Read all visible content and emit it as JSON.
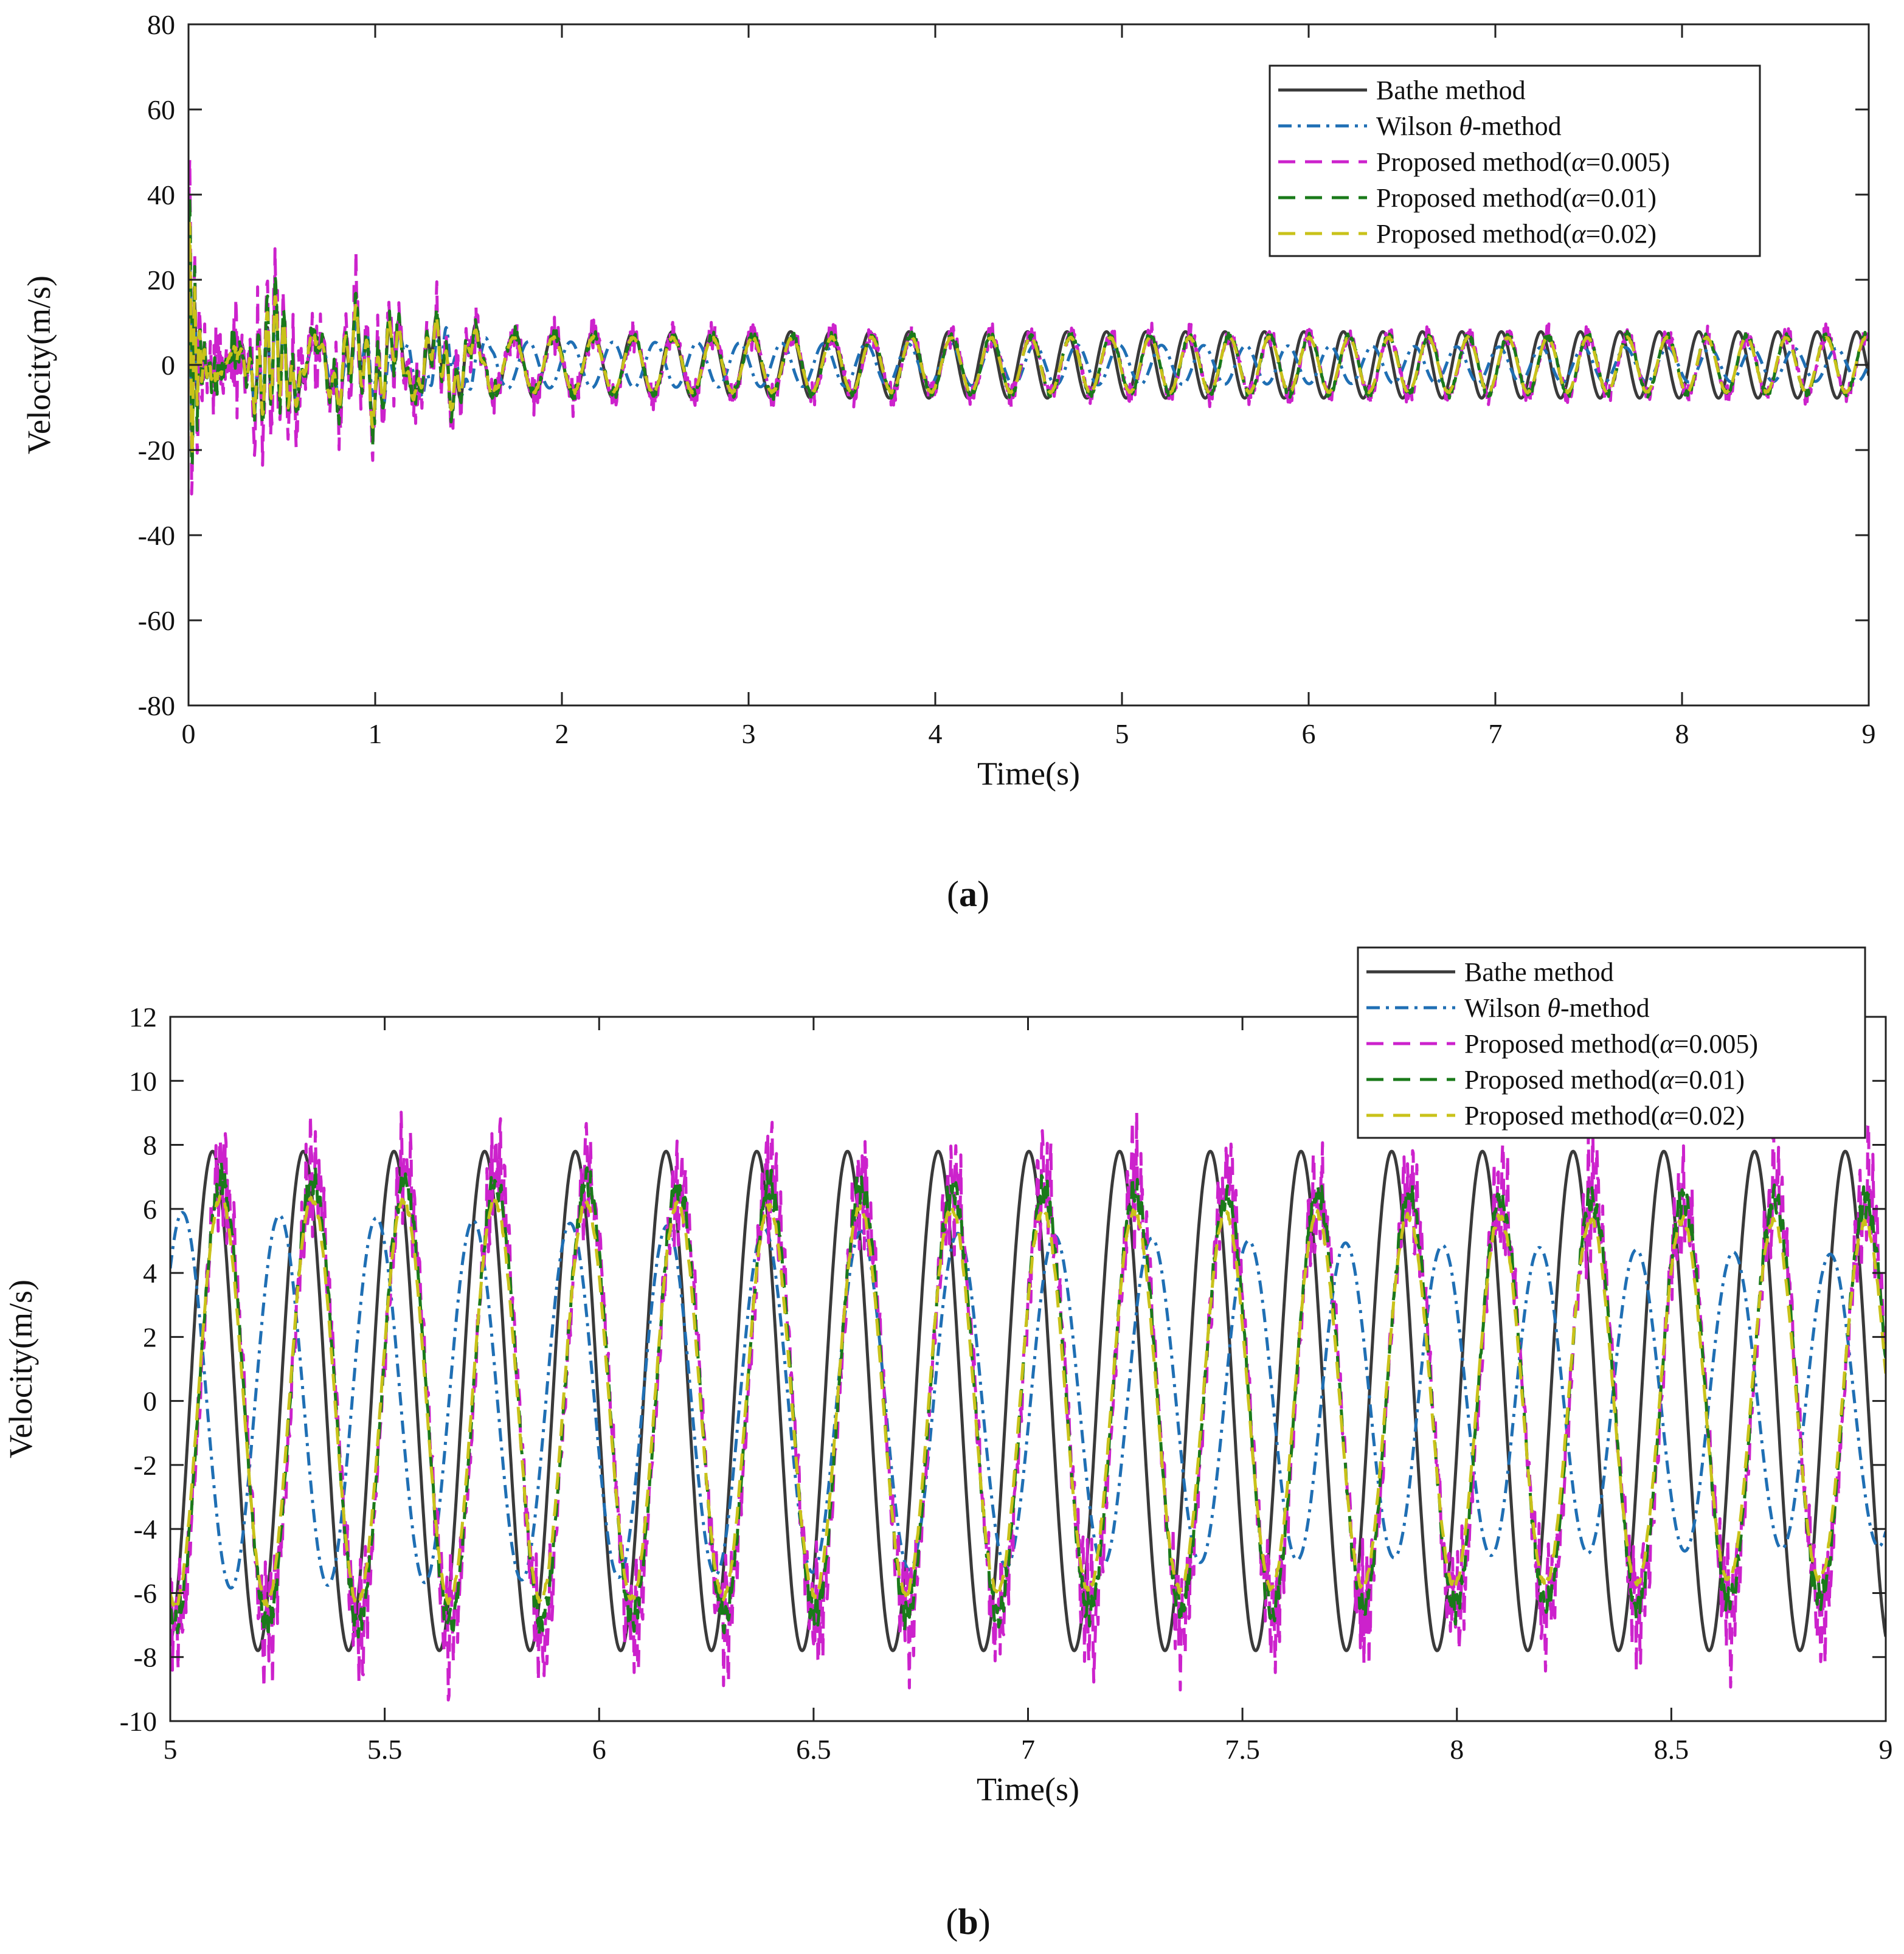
{
  "chart_data": [
    {
      "type": "line",
      "panel": "a",
      "caption_letter": "a",
      "xlabel": "Time(s)",
      "ylabel": "Velocity(m/s)",
      "xlim": [
        0,
        9
      ],
      "ylim": [
        -80,
        80
      ],
      "xticks": [
        0,
        1,
        2,
        3,
        4,
        5,
        6,
        7,
        8,
        9
      ],
      "xtick_labels": [
        "0",
        "1",
        "2",
        "3",
        "4",
        "5",
        "6",
        "7",
        "8",
        "9"
      ],
      "yticks": [
        -80,
        -60,
        -40,
        -20,
        0,
        20,
        40,
        60,
        80
      ],
      "ytick_labels": [
        "-80",
        "-60",
        "-40",
        "-20",
        "0",
        "20",
        "40",
        "60",
        "80"
      ],
      "legend_position": "top-right",
      "t_start": 0,
      "t_end": 9,
      "samples": 2700,
      "series": [
        {
          "name": "Bathe method",
          "color": "#3a3a3a",
          "dash": "solid",
          "amp": 7.8,
          "period": 0.2115,
          "phase": 0.0,
          "noise": 0.0,
          "transient": 1.0
        },
        {
          "name": "Wilson θ-method",
          "color": "#1f6fb4",
          "dash": "dashdot",
          "amp": 6.0,
          "period": 0.226,
          "phase": 1.2,
          "decay": 0.05,
          "noise": 0.0,
          "transient": 0.8
        },
        {
          "name": "Proposed method(α=0.005)",
          "color": "#cc22cc",
          "dash": "dashed",
          "amp": 7.0,
          "period": 0.213,
          "phase": 0.35,
          "noise": 1.6,
          "transient": 1.9
        },
        {
          "name": "Proposed method(α=0.01)",
          "color": "#1a7a1a",
          "dash": "dashed",
          "amp": 6.8,
          "period": 0.213,
          "phase": 0.4,
          "noise": 0.6,
          "transient": 1.5
        },
        {
          "name": "Proposed method(α=0.02)",
          "color": "#c9c21a",
          "dash": "dashed",
          "amp": 6.4,
          "period": 0.213,
          "phase": 0.45,
          "noise": 0.15,
          "transient": 1.2
        }
      ]
    },
    {
      "type": "line",
      "panel": "b",
      "caption_letter": "b",
      "xlabel": "Time(s)",
      "ylabel": "Velocity(m/s)",
      "xlim": [
        5,
        9
      ],
      "ylim": [
        -10,
        12
      ],
      "xticks": [
        5,
        5.5,
        6,
        6.5,
        7,
        7.5,
        8,
        8.5,
        9
      ],
      "xtick_labels": [
        "5",
        "5.5",
        "6",
        "6.5",
        "7",
        "7.5",
        "8",
        "8.5",
        "9"
      ],
      "yticks": [
        -10,
        -8,
        -6,
        -4,
        -2,
        0,
        2,
        4,
        6,
        8,
        10,
        12
      ],
      "ytick_labels": [
        "-10",
        "-8",
        "-6",
        "-4",
        "-2",
        "0",
        "2",
        "4",
        "6",
        "8",
        "10",
        "12"
      ],
      "legend_position": "top-right",
      "t_start": 5,
      "t_end": 9,
      "samples": 2400,
      "series": [
        {
          "name": "Bathe method",
          "color": "#3a3a3a",
          "dash": "solid",
          "amp": 7.8,
          "period": 0.2115,
          "phase": 0.9,
          "noise": 0.0
        },
        {
          "name": "Wilson θ-method",
          "color": "#1f6fb4",
          "dash": "dashdot",
          "amp": 5.9,
          "period": 0.226,
          "phase": 0.0,
          "decay": 0.065,
          "noise": 0.0
        },
        {
          "name": "Proposed method(α=0.005)",
          "color": "#cc22cc",
          "dash": "dashed",
          "amp": 7.2,
          "period": 0.213,
          "phase": 1.3,
          "decay": 0.03,
          "noise": 1.4
        },
        {
          "name": "Proposed method(α=0.01)",
          "color": "#1a7a1a",
          "dash": "dashed",
          "amp": 7.0,
          "period": 0.213,
          "phase": 1.35,
          "decay": 0.03,
          "noise": 0.35
        },
        {
          "name": "Proposed method(α=0.02)",
          "color": "#c9c21a",
          "dash": "dashed",
          "amp": 6.4,
          "period": 0.213,
          "phase": 1.4,
          "decay": 0.035,
          "noise": 0.08
        }
      ]
    }
  ],
  "legend_parts": [
    {
      "pre": "Bathe method",
      "sym": "",
      "post": ""
    },
    {
      "pre": "Wilson ",
      "sym": "θ",
      "post": "-method"
    },
    {
      "pre": "Proposed method(",
      "sym": "α",
      "post": "=0.005)"
    },
    {
      "pre": "Proposed method(",
      "sym": "α",
      "post": "=0.01)"
    },
    {
      "pre": "Proposed method(",
      "sym": "α",
      "post": "=0.02)"
    }
  ]
}
